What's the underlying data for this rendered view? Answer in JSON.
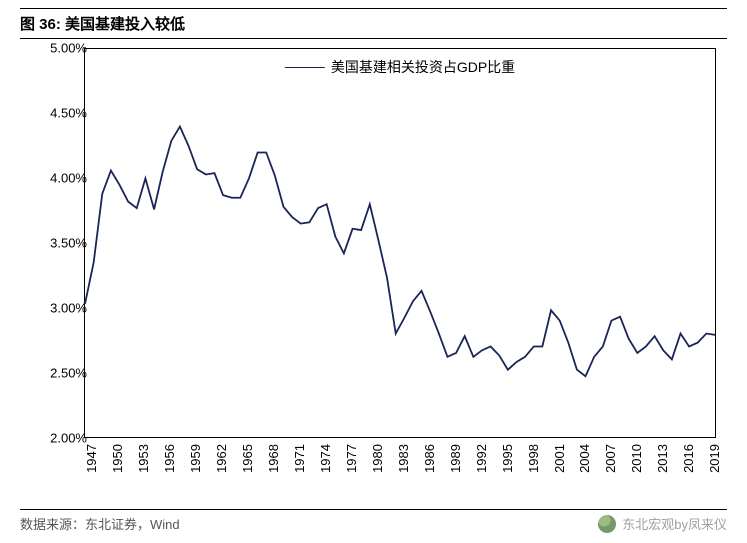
{
  "title": "图 36:  美国基建投入较低",
  "source": "数据来源：东北证券，Wind",
  "watermark": "东北宏观by凤来仪",
  "chart": {
    "type": "line",
    "legend_label": "美国基建相关投资占GDP比重",
    "line_color": "#1a2456",
    "line_width": 1.8,
    "background_color": "#ffffff",
    "axis_color": "#000000",
    "ylim": [
      2.0,
      5.0
    ],
    "ytick_step": 0.5,
    "ytick_format": "percent_2dec",
    "yticks": [
      "2.00%",
      "2.50%",
      "3.00%",
      "3.50%",
      "4.00%",
      "4.50%",
      "5.00%"
    ],
    "xlim": [
      1947,
      2020
    ],
    "xticks": [
      1947,
      1950,
      1953,
      1956,
      1959,
      1962,
      1965,
      1968,
      1971,
      1974,
      1977,
      1980,
      1983,
      1986,
      1989,
      1992,
      1995,
      1998,
      2001,
      2004,
      2007,
      2010,
      2013,
      2016,
      2019
    ],
    "series": [
      {
        "x": 1947,
        "y": 3.03
      },
      {
        "x": 1948,
        "y": 3.35
      },
      {
        "x": 1949,
        "y": 3.88
      },
      {
        "x": 1950,
        "y": 4.06
      },
      {
        "x": 1951,
        "y": 3.95
      },
      {
        "x": 1952,
        "y": 3.82
      },
      {
        "x": 1953,
        "y": 3.77
      },
      {
        "x": 1954,
        "y": 4.0
      },
      {
        "x": 1955,
        "y": 3.76
      },
      {
        "x": 1956,
        "y": 4.05
      },
      {
        "x": 1957,
        "y": 4.29
      },
      {
        "x": 1958,
        "y": 4.4
      },
      {
        "x": 1959,
        "y": 4.25
      },
      {
        "x": 1960,
        "y": 4.07
      },
      {
        "x": 1961,
        "y": 4.03
      },
      {
        "x": 1962,
        "y": 4.04
      },
      {
        "x": 1963,
        "y": 3.87
      },
      {
        "x": 1964,
        "y": 3.85
      },
      {
        "x": 1965,
        "y": 3.85
      },
      {
        "x": 1966,
        "y": 4.0
      },
      {
        "x": 1967,
        "y": 4.2
      },
      {
        "x": 1968,
        "y": 4.2
      },
      {
        "x": 1969,
        "y": 4.02
      },
      {
        "x": 1970,
        "y": 3.78
      },
      {
        "x": 1971,
        "y": 3.7
      },
      {
        "x": 1972,
        "y": 3.65
      },
      {
        "x": 1973,
        "y": 3.66
      },
      {
        "x": 1974,
        "y": 3.77
      },
      {
        "x": 1975,
        "y": 3.8
      },
      {
        "x": 1976,
        "y": 3.55
      },
      {
        "x": 1977,
        "y": 3.42
      },
      {
        "x": 1978,
        "y": 3.61
      },
      {
        "x": 1979,
        "y": 3.6
      },
      {
        "x": 1980,
        "y": 3.8
      },
      {
        "x": 1981,
        "y": 3.52
      },
      {
        "x": 1982,
        "y": 3.23
      },
      {
        "x": 1983,
        "y": 2.8
      },
      {
        "x": 1984,
        "y": 2.92
      },
      {
        "x": 1985,
        "y": 3.05
      },
      {
        "x": 1986,
        "y": 3.13
      },
      {
        "x": 1987,
        "y": 2.97
      },
      {
        "x": 1988,
        "y": 2.8
      },
      {
        "x": 1989,
        "y": 2.62
      },
      {
        "x": 1990,
        "y": 2.65
      },
      {
        "x": 1991,
        "y": 2.78
      },
      {
        "x": 1992,
        "y": 2.62
      },
      {
        "x": 1993,
        "y": 2.67
      },
      {
        "x": 1994,
        "y": 2.7
      },
      {
        "x": 1995,
        "y": 2.63
      },
      {
        "x": 1996,
        "y": 2.52
      },
      {
        "x": 1997,
        "y": 2.58
      },
      {
        "x": 1998,
        "y": 2.62
      },
      {
        "x": 1999,
        "y": 2.7
      },
      {
        "x": 2000,
        "y": 2.7
      },
      {
        "x": 2001,
        "y": 2.98
      },
      {
        "x": 2002,
        "y": 2.9
      },
      {
        "x": 2003,
        "y": 2.73
      },
      {
        "x": 2004,
        "y": 2.52
      },
      {
        "x": 2005,
        "y": 2.47
      },
      {
        "x": 2006,
        "y": 2.62
      },
      {
        "x": 2007,
        "y": 2.7
      },
      {
        "x": 2008,
        "y": 2.9
      },
      {
        "x": 2009,
        "y": 2.93
      },
      {
        "x": 2010,
        "y": 2.76
      },
      {
        "x": 2011,
        "y": 2.65
      },
      {
        "x": 2012,
        "y": 2.7
      },
      {
        "x": 2013,
        "y": 2.78
      },
      {
        "x": 2014,
        "y": 2.67
      },
      {
        "x": 2015,
        "y": 2.6
      },
      {
        "x": 2016,
        "y": 2.8
      },
      {
        "x": 2017,
        "y": 2.7
      },
      {
        "x": 2018,
        "y": 2.73
      },
      {
        "x": 2019,
        "y": 2.8
      },
      {
        "x": 2020,
        "y": 2.79
      }
    ]
  }
}
